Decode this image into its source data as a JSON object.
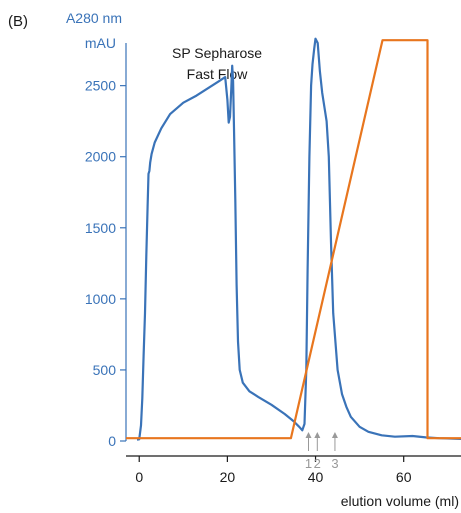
{
  "panel_label": "(B)",
  "chart_data": {
    "type": "line",
    "ylabel": "A280 nm",
    "yunit": "mAU",
    "xlabel": "elution volume (ml)",
    "annotation": [
      "SP Sepharose",
      "Fast Flow"
    ],
    "xlim": [
      -3,
      73
    ],
    "ylim": [
      0,
      2800
    ],
    "xticks": [
      0,
      20,
      40,
      60
    ],
    "yticks": [
      0,
      500,
      1000,
      1500,
      2000,
      2500
    ],
    "fraction_markers": [
      {
        "label": "1",
        "x": 38.4
      },
      {
        "label": "2",
        "x": 40.4
      },
      {
        "label": "3",
        "x": 44.4
      }
    ],
    "series": [
      {
        "key": "absorbance",
        "color": "#3a73b8",
        "points": [
          [
            -0.5,
            10
          ],
          [
            0,
            12
          ],
          [
            0.2,
            60
          ],
          [
            0.4,
            110
          ],
          [
            0.7,
            300
          ],
          [
            1,
            600
          ],
          [
            1.3,
            900
          ],
          [
            1.6,
            1300
          ],
          [
            1.9,
            1650
          ],
          [
            2.1,
            1880
          ],
          [
            2.3,
            1900
          ],
          [
            2.5,
            1960
          ],
          [
            2.8,
            2020
          ],
          [
            3.5,
            2100
          ],
          [
            5,
            2200
          ],
          [
            7,
            2300
          ],
          [
            10,
            2380
          ],
          [
            13,
            2430
          ],
          [
            16,
            2490
          ],
          [
            18,
            2530
          ],
          [
            19.5,
            2560
          ],
          [
            20,
            2400
          ],
          [
            20.3,
            2240
          ],
          [
            20.6,
            2280
          ],
          [
            20.9,
            2480
          ],
          [
            21.1,
            2640
          ],
          [
            21.3,
            2530
          ],
          [
            21.5,
            2200
          ],
          [
            21.8,
            1700
          ],
          [
            22.1,
            1100
          ],
          [
            22.4,
            700
          ],
          [
            22.8,
            500
          ],
          [
            23.5,
            410
          ],
          [
            25,
            350
          ],
          [
            27,
            310
          ],
          [
            30,
            255
          ],
          [
            33,
            190
          ],
          [
            35,
            140
          ],
          [
            36.3,
            100
          ],
          [
            37,
            75
          ],
          [
            37.5,
            120
          ],
          [
            37.9,
            500
          ],
          [
            38.2,
            1200
          ],
          [
            38.6,
            2000
          ],
          [
            39,
            2500
          ],
          [
            39.3,
            2650
          ],
          [
            39.7,
            2760
          ],
          [
            40,
            2830
          ],
          [
            40.5,
            2800
          ],
          [
            41,
            2600
          ],
          [
            41.5,
            2450
          ],
          [
            42,
            2350
          ],
          [
            42.5,
            2250
          ],
          [
            43,
            2000
          ],
          [
            43.5,
            1400
          ],
          [
            44,
            900
          ],
          [
            45,
            500
          ],
          [
            46,
            330
          ],
          [
            47,
            240
          ],
          [
            48,
            170
          ],
          [
            50,
            100
          ],
          [
            52,
            65
          ],
          [
            55,
            40
          ],
          [
            58,
            30
          ],
          [
            62,
            35
          ],
          [
            65,
            25
          ],
          [
            68,
            20
          ],
          [
            73,
            15
          ]
        ]
      },
      {
        "key": "gradient",
        "color": "#e8761e",
        "points": [
          [
            -3,
            20
          ],
          [
            34.4,
            20
          ],
          [
            55.2,
            2820
          ],
          [
            65.4,
            2820
          ],
          [
            65.4,
            20
          ],
          [
            73,
            20
          ]
        ]
      }
    ]
  }
}
